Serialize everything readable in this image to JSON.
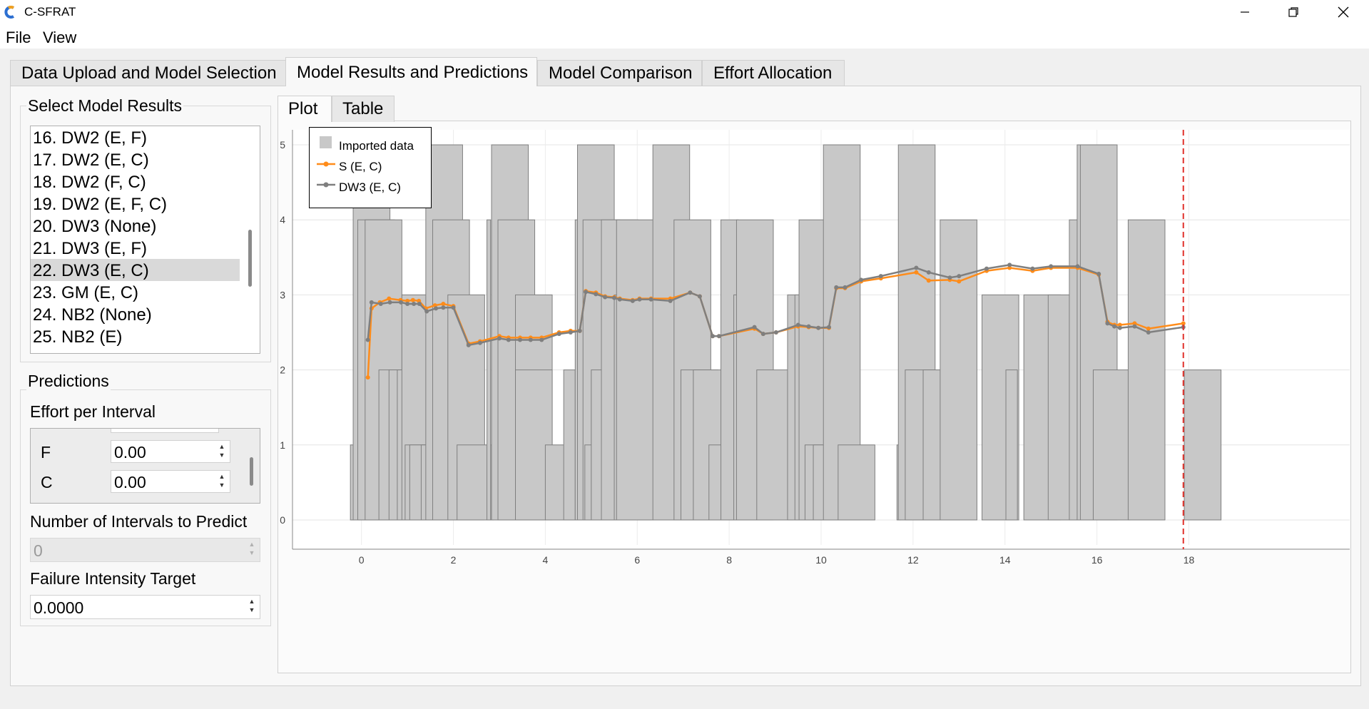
{
  "window": {
    "title": "C-SFRAT"
  },
  "menu": [
    "File",
    "View"
  ],
  "main_tabs": [
    "Data Upload and Model Selection",
    "Model Results and Predictions",
    "Model Comparison",
    "Effort Allocation"
  ],
  "select_model_results": {
    "title": "Select Model Results",
    "items": [
      "16. DW2 (E, F)",
      "17. DW2 (E, C)",
      "18. DW2 (F, C)",
      "19. DW2 (E, F, C)",
      "20. DW3 (None)",
      "21. DW3 (E, F)",
      "22. DW3 (E, C)",
      "23. GM (E, C)",
      "24. NB2 (None)",
      "25. NB2 (E)"
    ],
    "selected_index": 6
  },
  "predictions": {
    "title": "Predictions",
    "effort_label": "Effort per Interval",
    "efforts": [
      {
        "label": "F",
        "value": "0.00"
      },
      {
        "label": "C",
        "value": "0.00"
      }
    ],
    "intervals_label": "Number of Intervals to Predict",
    "intervals_value": "0",
    "target_label": "Failure Intensity Target",
    "target_value": "0.0000"
  },
  "plot_tabs": [
    "Plot",
    "Table"
  ],
  "colors": {
    "bars": "#c8c8c8",
    "bar_edge": "#7f7f7f",
    "s_ec": "#ff8c1a",
    "dw3_ec": "#7f7f7f",
    "target_line": "#e0302a"
  },
  "chart_data": {
    "type": "bar",
    "legend": [
      "Imported data",
      "S (E, C)",
      "DW3 (E, C)"
    ],
    "legend_position": "top-left",
    "xlim": [
      -1.5,
      21.5
    ],
    "ylim": [
      -0.2,
      5.2
    ],
    "x_ticks": [
      0,
      2,
      4,
      6,
      8,
      10,
      12,
      14,
      16,
      18
    ],
    "y_ticks": [
      0,
      1,
      2,
      3,
      4,
      5
    ],
    "grid": true,
    "vertical_marker_x": 17.88,
    "bars": [
      {
        "x": -0.24,
        "w": 0.08,
        "y": 1
      },
      {
        "x": -0.18,
        "w": 0.8,
        "y": 5
      },
      {
        "x": -0.08,
        "w": 0.8,
        "y": 4
      },
      {
        "x": 0.08,
        "w": 0.8,
        "y": 4
      },
      {
        "x": 0.38,
        "w": 0.8,
        "y": 2
      },
      {
        "x": 0.6,
        "w": 0.8,
        "y": 2
      },
      {
        "x": 0.78,
        "w": 0.8,
        "y": 2
      },
      {
        "x": 0.88,
        "w": 0.8,
        "y": 3
      },
      {
        "x": 0.95,
        "w": 0.8,
        "y": 1
      },
      {
        "x": 1.05,
        "w": 0.8,
        "y": 1
      },
      {
        "x": 1.3,
        "w": 0.8,
        "y": 1
      },
      {
        "x": 1.4,
        "w": 0.8,
        "y": 5
      },
      {
        "x": 1.55,
        "w": 0.8,
        "y": 4
      },
      {
        "x": 1.88,
        "w": 0.8,
        "y": 3
      },
      {
        "x": 2.08,
        "w": 0.8,
        "y": 1
      },
      {
        "x": 2.73,
        "w": 0.08,
        "y": 4
      },
      {
        "x": 2.83,
        "w": 0.8,
        "y": 5
      },
      {
        "x": 2.97,
        "w": 0.8,
        "y": 4
      },
      {
        "x": 3.35,
        "w": 0.8,
        "y": 3
      },
      {
        "x": 3.35,
        "w": 0.8,
        "y": 2
      },
      {
        "x": 4.0,
        "w": 0.8,
        "y": 1
      },
      {
        "x": 4.4,
        "w": 0.25,
        "y": 2
      },
      {
        "x": 4.65,
        "w": 0.08,
        "y": 4
      },
      {
        "x": 4.7,
        "w": 0.8,
        "y": 5
      },
      {
        "x": 4.82,
        "w": 0.8,
        "y": 4
      },
      {
        "x": 4.86,
        "w": 0.25,
        "y": 1
      },
      {
        "x": 5.0,
        "w": 0.4,
        "y": 2
      },
      {
        "x": 5.22,
        "w": 0.8,
        "y": 4
      },
      {
        "x": 5.5,
        "w": 0.8,
        "y": 3
      },
      {
        "x": 5.55,
        "w": 0.8,
        "y": 4
      },
      {
        "x": 6.34,
        "w": 0.8,
        "y": 5
      },
      {
        "x": 6.8,
        "w": 0.8,
        "y": 4
      },
      {
        "x": 6.95,
        "w": 0.8,
        "y": 2
      },
      {
        "x": 7.22,
        "w": 0.8,
        "y": 2
      },
      {
        "x": 7.56,
        "w": 0.8,
        "y": 1
      },
      {
        "x": 7.82,
        "w": 0.38,
        "y": 4
      },
      {
        "x": 8.1,
        "w": 0.8,
        "y": 3
      },
      {
        "x": 8.16,
        "w": 0.8,
        "y": 4
      },
      {
        "x": 8.6,
        "w": 0.8,
        "y": 2
      },
      {
        "x": 9.27,
        "w": 0.8,
        "y": 3
      },
      {
        "x": 9.43,
        "w": 0.8,
        "y": 3
      },
      {
        "x": 9.52,
        "w": 0.8,
        "y": 4
      },
      {
        "x": 9.65,
        "w": 0.8,
        "y": 1
      },
      {
        "x": 9.83,
        "w": 0.8,
        "y": 1
      },
      {
        "x": 10.05,
        "w": 0.8,
        "y": 5
      },
      {
        "x": 10.37,
        "w": 0.8,
        "y": 1
      },
      {
        "x": 11.65,
        "w": 0.08,
        "y": 1
      },
      {
        "x": 11.68,
        "w": 0.8,
        "y": 5
      },
      {
        "x": 11.83,
        "w": 0.8,
        "y": 2
      },
      {
        "x": 12.22,
        "w": 0.8,
        "y": 2
      },
      {
        "x": 12.59,
        "w": 0.8,
        "y": 4
      },
      {
        "x": 13.5,
        "w": 0.8,
        "y": 3
      },
      {
        "x": 14.02,
        "w": 0.25,
        "y": 2
      },
      {
        "x": 14.41,
        "w": 0.8,
        "y": 3
      },
      {
        "x": 14.94,
        "w": 0.8,
        "y": 3
      },
      {
        "x": 15.4,
        "w": 0.4,
        "y": 4
      },
      {
        "x": 15.57,
        "w": 0.8,
        "y": 5
      },
      {
        "x": 15.64,
        "w": 0.8,
        "y": 5
      },
      {
        "x": 15.92,
        "w": 0.8,
        "y": 2
      },
      {
        "x": 16.68,
        "w": 0.8,
        "y": 4
      },
      {
        "x": 17.9,
        "w": 0.8,
        "y": 2
      }
    ],
    "series": [
      {
        "name": "S (E, C)",
        "x": [
          0.14,
          0.22,
          0.4,
          0.6,
          0.85,
          1.0,
          1.12,
          1.25,
          1.4,
          1.6,
          1.78,
          2.0,
          2.33,
          2.58,
          3.0,
          3.2,
          3.45,
          3.68,
          3.92,
          4.3,
          4.55,
          4.75,
          4.88,
          5.1,
          5.3,
          5.5,
          5.62,
          5.9,
          6.05,
          6.3,
          6.72,
          7.15,
          7.36,
          7.64,
          7.78,
          8.55,
          8.74,
          9.02,
          9.5,
          9.73,
          9.94,
          10.17,
          10.33,
          10.52,
          10.87,
          11.3,
          12.07,
          12.34,
          12.8,
          13.0,
          13.6,
          14.1,
          14.6,
          15.0,
          15.58,
          16.04,
          16.23,
          16.38,
          16.5,
          16.82,
          17.12,
          17.88
        ],
        "y": [
          1.9,
          2.82,
          2.9,
          2.95,
          2.93,
          2.92,
          2.93,
          2.92,
          2.82,
          2.86,
          2.88,
          2.85,
          2.35,
          2.38,
          2.45,
          2.43,
          2.43,
          2.43,
          2.43,
          2.5,
          2.52,
          2.52,
          3.05,
          3.03,
          2.98,
          2.97,
          2.95,
          2.93,
          2.95,
          2.95,
          2.95,
          3.03,
          2.98,
          2.45,
          2.45,
          2.55,
          2.48,
          2.5,
          2.58,
          2.57,
          2.56,
          2.56,
          3.09,
          3.09,
          3.18,
          3.22,
          3.3,
          3.19,
          3.2,
          3.18,
          3.32,
          3.36,
          3.32,
          3.36,
          3.36,
          3.27,
          2.64,
          2.6,
          2.6,
          2.62,
          2.55,
          2.62
        ]
      },
      {
        "name": "DW3 (E, C)",
        "x": [
          0.14,
          0.22,
          0.42,
          0.62,
          0.86,
          1.0,
          1.14,
          1.26,
          1.42,
          1.62,
          1.78,
          2.0,
          2.33,
          2.58,
          3.0,
          3.2,
          3.45,
          3.68,
          3.92,
          4.3,
          4.55,
          4.75,
          4.88,
          5.1,
          5.3,
          5.5,
          5.62,
          5.9,
          6.05,
          6.3,
          6.72,
          7.15,
          7.36,
          7.64,
          7.78,
          8.55,
          8.74,
          9.02,
          9.5,
          9.73,
          9.94,
          10.17,
          10.33,
          10.52,
          10.87,
          11.3,
          12.07,
          12.34,
          12.8,
          13.0,
          13.6,
          14.1,
          14.6,
          15.0,
          15.58,
          16.04,
          16.23,
          16.38,
          16.5,
          16.82,
          17.12,
          17.88
        ],
        "y": [
          2.4,
          2.9,
          2.88,
          2.9,
          2.9,
          2.88,
          2.88,
          2.88,
          2.78,
          2.82,
          2.83,
          2.83,
          2.33,
          2.36,
          2.42,
          2.4,
          2.4,
          2.4,
          2.4,
          2.48,
          2.5,
          2.52,
          3.04,
          3.01,
          2.97,
          2.96,
          2.94,
          2.92,
          2.94,
          2.94,
          2.92,
          3.03,
          2.98,
          2.45,
          2.45,
          2.57,
          2.48,
          2.5,
          2.6,
          2.58,
          2.56,
          2.57,
          3.1,
          3.1,
          3.2,
          3.25,
          3.36,
          3.3,
          3.23,
          3.25,
          3.35,
          3.4,
          3.35,
          3.38,
          3.38,
          3.28,
          2.62,
          2.58,
          2.56,
          2.58,
          2.5,
          2.57
        ]
      }
    ]
  }
}
